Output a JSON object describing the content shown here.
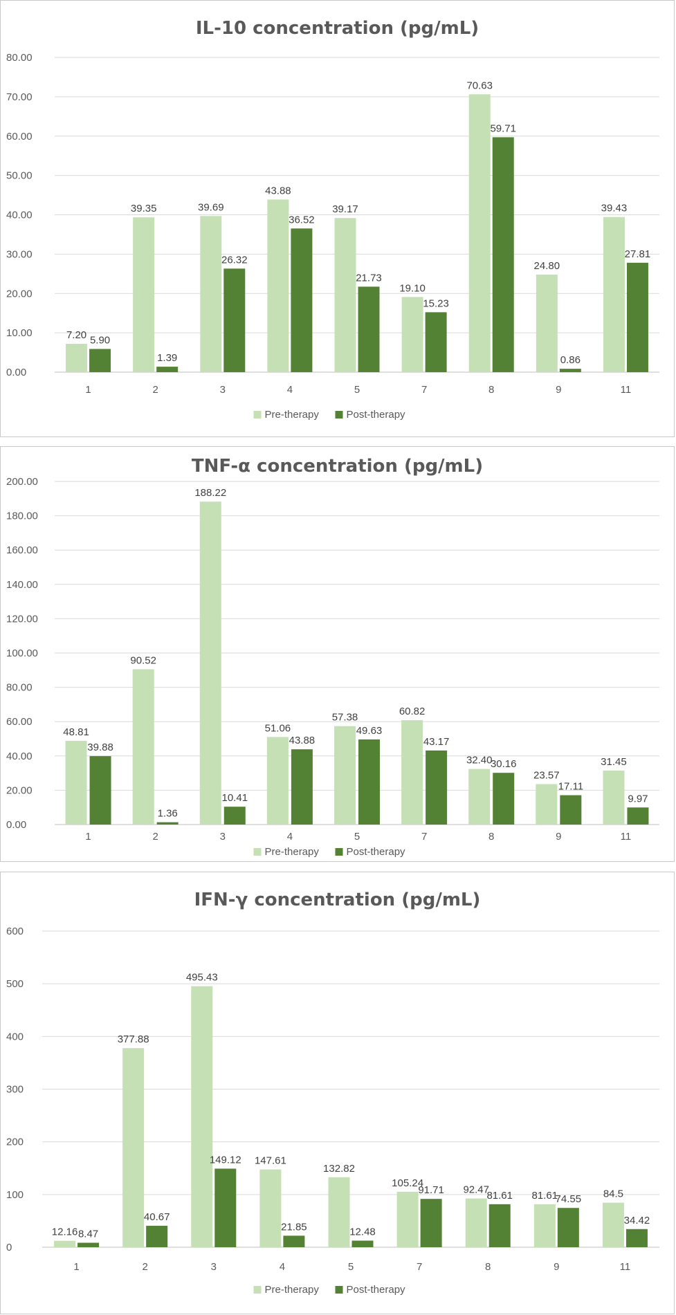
{
  "chart_data": [
    {
      "type": "bar",
      "title": "IL-10 concentration (pg/mL)",
      "categories": [
        "1",
        "2",
        "3",
        "4",
        "5",
        "7",
        "8",
        "9",
        "11"
      ],
      "ylim": [
        0,
        80
      ],
      "yticks": [
        "0.00",
        "10.00",
        "20.00",
        "30.00",
        "40.00",
        "50.00",
        "60.00",
        "70.00",
        "80.00"
      ],
      "grid": true,
      "legend_position": "bottom",
      "series": [
        {
          "name": "Pre-therapy",
          "color": "#c5e0b4",
          "values": [
            7.2,
            39.35,
            39.69,
            43.88,
            39.17,
            19.1,
            70.63,
            24.8,
            39.43
          ],
          "labels": [
            "7.20",
            "39.35",
            "39.69",
            "43.88",
            "39.17",
            "19.10",
            "70.63",
            "24.80",
            "39.43"
          ]
        },
        {
          "name": "Post-therapy",
          "color": "#548235",
          "values": [
            5.9,
            1.39,
            26.32,
            36.52,
            21.73,
            15.23,
            59.71,
            0.86,
            27.81
          ],
          "labels": [
            "5.90",
            "1.39",
            "26.32",
            "36.52",
            "21.73",
            "15.23",
            "59.71",
            "0.86",
            "27.81"
          ]
        }
      ]
    },
    {
      "type": "bar",
      "title": "TNF-α concentration (pg/mL)",
      "categories": [
        "1",
        "2",
        "3",
        "4",
        "5",
        "7",
        "8",
        "9",
        "11"
      ],
      "ylim": [
        0,
        200
      ],
      "yticks": [
        "0.00",
        "20.00",
        "40.00",
        "60.00",
        "80.00",
        "100.00",
        "120.00",
        "140.00",
        "160.00",
        "180.00",
        "200.00"
      ],
      "grid": true,
      "legend_position": "bottom",
      "series": [
        {
          "name": "Pre-therapy",
          "color": "#c5e0b4",
          "values": [
            48.81,
            90.52,
            188.22,
            51.06,
            57.38,
            60.82,
            32.4,
            23.57,
            31.45
          ],
          "labels": [
            "48.81",
            "90.52",
            "188.22",
            "51.06",
            "57.38",
            "60.82",
            "32.40",
            "23.57",
            "31.45"
          ]
        },
        {
          "name": "Post-therapy",
          "color": "#548235",
          "values": [
            39.88,
            1.36,
            10.41,
            43.88,
            49.63,
            43.17,
            30.16,
            17.11,
            9.97
          ],
          "labels": [
            "39.88",
            "1.36",
            "10.41",
            "43.88",
            "49.63",
            "43.17",
            "30.16",
            "17.11",
            "9.97"
          ]
        }
      ]
    },
    {
      "type": "bar",
      "title": "IFN-γ concentration (pg/mL)",
      "categories": [
        "1",
        "2",
        "3",
        "4",
        "5",
        "7",
        "8",
        "9",
        "11"
      ],
      "ylim": [
        0,
        600
      ],
      "yticks": [
        "0",
        "100",
        "200",
        "300",
        "400",
        "500",
        "600"
      ],
      "grid": true,
      "legend_position": "bottom",
      "series": [
        {
          "name": "Pre-therapy",
          "color": "#c5e0b4",
          "values": [
            12.16,
            377.88,
            495.43,
            147.61,
            132.82,
            105.24,
            92.47,
            81.61,
            84.5
          ],
          "labels": [
            "12.16",
            "377.88",
            "495.43",
            "147.61",
            "132.82",
            "105.24",
            "92.47",
            "81.61",
            "84.5"
          ]
        },
        {
          "name": "Post-therapy",
          "color": "#548235",
          "values": [
            8.47,
            40.67,
            149.12,
            21.85,
            12.48,
            91.71,
            81.61,
            74.55,
            34.42
          ],
          "labels": [
            "8.47",
            "40.67",
            "149.12",
            "21.85",
            "12.48",
            "91.71",
            "81.61",
            "74.55",
            "34.42"
          ]
        }
      ]
    }
  ]
}
